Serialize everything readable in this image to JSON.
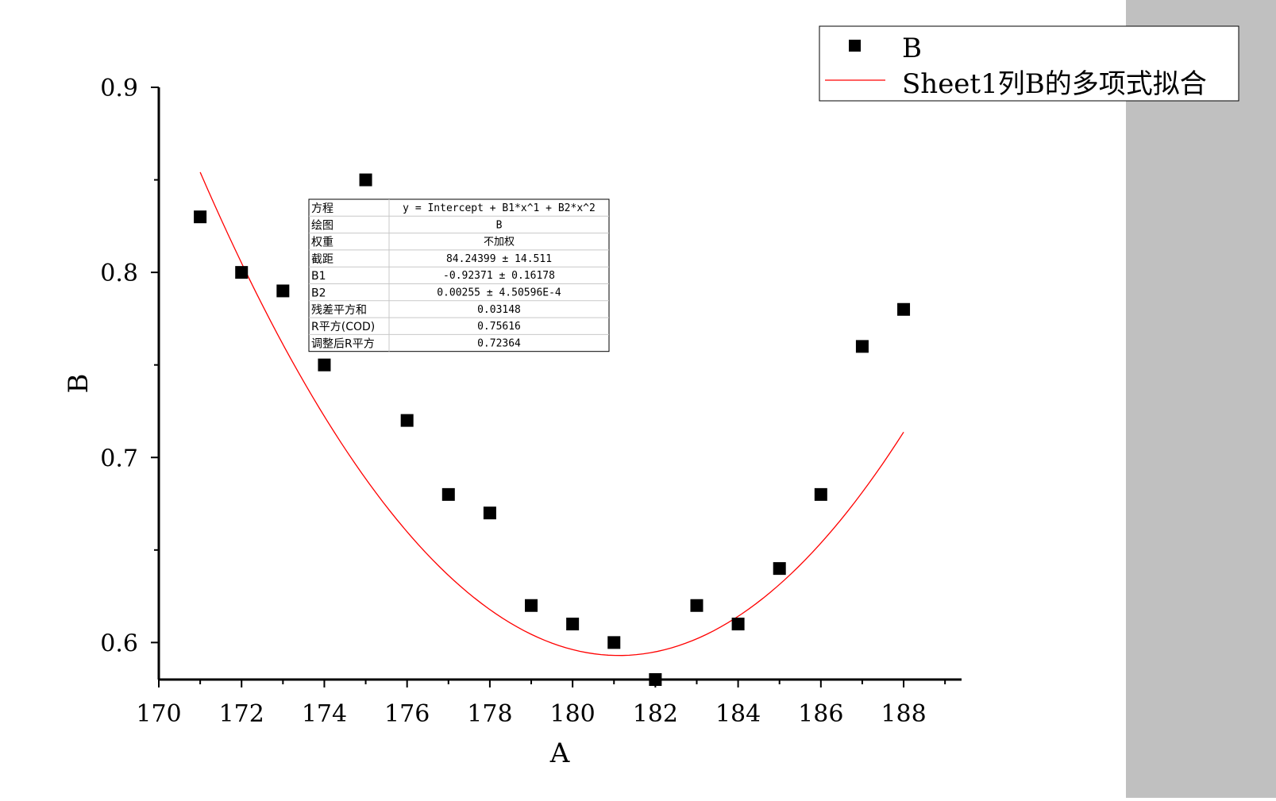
{
  "colors": {
    "markers": "#000000",
    "fit_line": "#ff0000",
    "side_panel": "#c0c0c0",
    "axis": "#000000"
  },
  "chart_data": {
    "type": "scatter",
    "title": "",
    "xlabel": "A",
    "ylabel": "B",
    "xlim": [
      170,
      189.4
    ],
    "ylim": [
      0.58,
      0.9
    ],
    "x_ticks": [
      170,
      172,
      174,
      176,
      178,
      180,
      182,
      184,
      186,
      188
    ],
    "x_tick_labels": [
      "170",
      "172",
      "174",
      "176",
      "178",
      "180",
      "182",
      "184",
      "186",
      "188"
    ],
    "y_ticks": [
      0.6,
      0.7,
      0.8,
      0.9
    ],
    "y_tick_labels": [
      "0.6",
      "0.7",
      "0.8",
      "0.9"
    ],
    "legend_position": "top-right",
    "series": [
      {
        "name": "B",
        "kind": "scatter",
        "marker": "square",
        "x": [
          171,
          172,
          173,
          174,
          175,
          176,
          177,
          178,
          179,
          180,
          181,
          182,
          183,
          184,
          185,
          186,
          187,
          188
        ],
        "y": [
          0.83,
          0.8,
          0.79,
          0.75,
          0.85,
          0.72,
          0.68,
          0.67,
          0.62,
          0.61,
          0.6,
          0.58,
          0.62,
          0.61,
          0.64,
          0.68,
          0.76,
          0.78
        ]
      },
      {
        "name": "Sheet1列B的多项式拟合",
        "kind": "line",
        "x_range": [
          171,
          188
        ],
        "coefficients": {
          "intercept": 84.24399,
          "b1": -0.92371,
          "b2": 0.00255
        }
      }
    ],
    "stats_table": {
      "rows": [
        {
          "label": "方程",
          "value": "y = Intercept + B1*x^1 + B2*x^2"
        },
        {
          "label": "绘图",
          "value": "B"
        },
        {
          "label": "权重",
          "value": "不加权"
        },
        {
          "label": "截距",
          "value": "84.24399 ± 14.511"
        },
        {
          "label": "B1",
          "value": "-0.92371 ± 0.16178"
        },
        {
          "label": "B2",
          "value": "0.00255 ± 4.50596E-4"
        },
        {
          "label": "残差平方和",
          "value": "0.03148"
        },
        {
          "label": "R平方(COD)",
          "value": "0.75616"
        },
        {
          "label": "调整后R平方",
          "value": "0.72364"
        }
      ]
    }
  }
}
